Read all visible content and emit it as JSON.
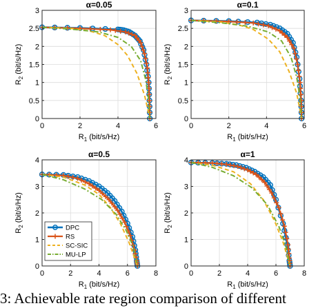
{
  "caption": "3: Achievable rate region comparison of different",
  "legend": [
    "DPC",
    "RS",
    "SC-SIC",
    "MU-LP"
  ],
  "colors": {
    "DPC": "#0072bd",
    "RS": "#d95319",
    "SC-SIC": "#edb120",
    "MU-LP": "#77ac30"
  },
  "chart_data": [
    {
      "type": "line",
      "title": "α=0.05",
      "xlabel": "R1 (bit/s/Hz)",
      "ylabel": "R2 (bit/s/Hz)",
      "xlim": [
        0,
        6
      ],
      "ylim": [
        0,
        3
      ],
      "xticks": [
        0,
        2,
        4,
        6
      ],
      "yticks": [
        0,
        0.5,
        1,
        1.5,
        2,
        2.5,
        3
      ],
      "grid": true,
      "series": [
        {
          "name": "DPC",
          "x": [
            0,
            2.0,
            4.0,
            4.3,
            4.6,
            4.9,
            5.15,
            5.35,
            5.5,
            5.62,
            5.66,
            5.68
          ],
          "y": [
            2.53,
            2.51,
            2.47,
            2.45,
            2.4,
            2.3,
            2.15,
            1.9,
            1.5,
            1.0,
            0.5,
            0.0
          ]
        },
        {
          "name": "RS",
          "x": [
            0,
            2.0,
            3.6,
            4.4,
            4.9,
            5.2,
            5.4,
            5.55,
            5.62,
            5.66,
            5.68
          ],
          "y": [
            2.53,
            2.5,
            2.46,
            2.4,
            2.3,
            2.1,
            1.8,
            1.4,
            1.0,
            0.5,
            0.0
          ]
        },
        {
          "name": "SC-SIC",
          "x": [
            0,
            1.5,
            2.5,
            3.3,
            4.0,
            4.5,
            5.0,
            5.4,
            5.68
          ],
          "y": [
            2.53,
            2.5,
            2.43,
            2.3,
            2.05,
            1.75,
            1.25,
            0.65,
            0.0
          ]
        },
        {
          "name": "MU-LP",
          "x": [
            0,
            1.5,
            3.0,
            4.0,
            4.7,
            5.2,
            5.45,
            5.6,
            5.68
          ],
          "y": [
            2.53,
            2.48,
            2.4,
            2.25,
            2.0,
            1.6,
            1.1,
            0.6,
            0.0
          ]
        }
      ]
    },
    {
      "type": "line",
      "title": "α=0.1",
      "xlabel": "R1 (bit/s/Hz)",
      "ylabel": "R2 (bit/s/Hz)",
      "xlim": [
        0,
        6
      ],
      "ylim": [
        0,
        3
      ],
      "xticks": [
        0,
        2,
        4,
        6
      ],
      "yticks": [
        0,
        0.5,
        1,
        1.5,
        2,
        2.5,
        3
      ],
      "grid": true,
      "series": [
        {
          "name": "DPC",
          "x": [
            0,
            2.0,
            3.5,
            4.2,
            4.7,
            5.1,
            5.4,
            5.6,
            5.75,
            5.83,
            5.86
          ],
          "y": [
            2.72,
            2.7,
            2.66,
            2.6,
            2.5,
            2.35,
            2.1,
            1.7,
            1.1,
            0.5,
            0.0
          ]
        },
        {
          "name": "RS",
          "x": [
            0,
            2.0,
            3.3,
            4.1,
            4.7,
            5.1,
            5.45,
            5.65,
            5.78,
            5.84,
            5.86
          ],
          "y": [
            2.72,
            2.69,
            2.65,
            2.57,
            2.43,
            2.25,
            1.95,
            1.5,
            1.0,
            0.5,
            0.0
          ]
        },
        {
          "name": "SC-SIC",
          "x": [
            0,
            1.5,
            2.5,
            3.3,
            4.1,
            4.7,
            5.2,
            5.6,
            5.86
          ],
          "y": [
            2.72,
            2.68,
            2.6,
            2.47,
            2.2,
            1.85,
            1.3,
            0.7,
            0.0
          ]
        },
        {
          "name": "MU-LP",
          "x": [
            0,
            1.5,
            3.0,
            4.1,
            4.8,
            5.3,
            5.6,
            5.78,
            5.86
          ],
          "y": [
            2.72,
            2.66,
            2.56,
            2.4,
            2.15,
            1.7,
            1.15,
            0.55,
            0.0
          ]
        }
      ]
    },
    {
      "type": "line",
      "title": "α=0.5",
      "xlabel": "R1 (bit/s/Hz)",
      "ylabel": "R2 (bit/s/Hz)",
      "xlim": [
        0,
        8
      ],
      "ylim": [
        0,
        4
      ],
      "xticks": [
        0,
        2,
        4,
        6,
        8
      ],
      "yticks": [
        0,
        1,
        2,
        3,
        4
      ],
      "grid": true,
      "series": [
        {
          "name": "DPC",
          "x": [
            0,
            1.5,
            2.5,
            3.3,
            4.0,
            4.6,
            5.1,
            5.6,
            6.0,
            6.35,
            6.55,
            6.65,
            6.7
          ],
          "y": [
            3.45,
            3.43,
            3.35,
            3.2,
            3.0,
            2.75,
            2.45,
            2.05,
            1.6,
            1.1,
            0.6,
            0.2,
            0.0
          ]
        },
        {
          "name": "RS",
          "x": [
            0,
            1.5,
            2.5,
            3.3,
            4.0,
            4.7,
            5.3,
            5.8,
            6.2,
            6.5,
            6.65,
            6.7
          ],
          "y": [
            3.45,
            3.41,
            3.3,
            3.1,
            2.85,
            2.5,
            2.1,
            1.65,
            1.15,
            0.6,
            0.2,
            0.0
          ]
        },
        {
          "name": "SC-SIC",
          "x": [
            0,
            1.5,
            3.0,
            4.0,
            4.8,
            5.5,
            6.1,
            6.7
          ],
          "y": [
            3.45,
            3.35,
            3.05,
            2.7,
            2.2,
            1.6,
            0.9,
            0.0
          ]
        },
        {
          "name": "MU-LP",
          "x": [
            0,
            1.5,
            3.0,
            4.2,
            5.2,
            5.9,
            6.4,
            6.7
          ],
          "y": [
            3.45,
            3.25,
            2.9,
            2.5,
            1.95,
            1.35,
            0.75,
            0.0
          ]
        }
      ]
    },
    {
      "type": "line",
      "title": "α=1",
      "xlabel": "R1 (bit/s/Hz)",
      "ylabel": "R2 (bit/s/Hz)",
      "xlim": [
        0,
        8
      ],
      "ylim": [
        0,
        4
      ],
      "xticks": [
        0,
        2,
        4,
        6,
        8
      ],
      "yticks": [
        0,
        1,
        2,
        3,
        4
      ],
      "grid": true,
      "series": [
        {
          "name": "DPC",
          "x": [
            0,
            1.5,
            2.5,
            3.2,
            3.9,
            4.5,
            5.1,
            5.6,
            6.0,
            6.5,
            6.8,
            6.95,
            7.0
          ],
          "y": [
            3.9,
            3.88,
            3.85,
            3.8,
            3.7,
            3.55,
            3.35,
            3.05,
            2.5,
            1.6,
            0.8,
            0.2,
            0.0
          ]
        },
        {
          "name": "RS",
          "x": [
            0,
            1.5,
            2.5,
            3.3,
            4.0,
            4.6,
            5.2,
            5.7,
            6.2,
            6.6,
            6.85,
            6.95,
            7.0
          ],
          "y": [
            3.9,
            3.88,
            3.83,
            3.75,
            3.62,
            3.45,
            3.15,
            2.75,
            2.2,
            1.5,
            0.8,
            0.3,
            0.0
          ]
        },
        {
          "name": "SC-SIC",
          "x": [
            0,
            1.5,
            3.0,
            4.2,
            5.1,
            5.9,
            6.5,
            7.0
          ],
          "y": [
            3.9,
            3.8,
            3.55,
            3.1,
            2.5,
            1.7,
            0.9,
            0.0
          ]
        },
        {
          "name": "MU-LP",
          "x": [
            0,
            1.5,
            3.0,
            4.3,
            5.4,
            6.2,
            6.7,
            7.0
          ],
          "y": [
            3.9,
            3.72,
            3.4,
            2.95,
            2.3,
            1.5,
            0.75,
            0.0
          ]
        }
      ]
    }
  ]
}
